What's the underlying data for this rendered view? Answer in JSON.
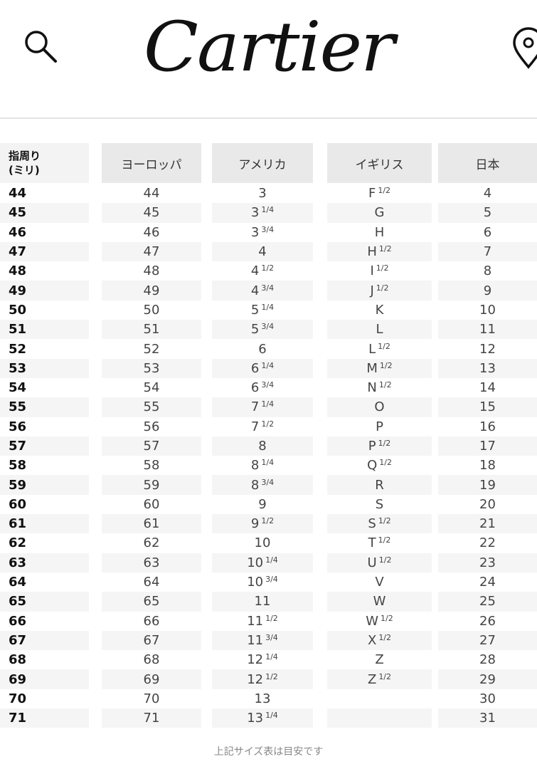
{
  "header": {
    "logo": "Cartier",
    "search_icon": "search-icon",
    "location_icon": "map-pin-icon"
  },
  "table": {
    "headers": [
      "指周り\n(ミリ)",
      "ヨーロッパ",
      "アメリカ",
      "イギリス",
      "日本"
    ],
    "rows": [
      {
        "mm": "44",
        "eu": "44",
        "us": "3",
        "us_f": "",
        "uk": "F",
        "uk_f": "1/2",
        "jp": "4"
      },
      {
        "mm": "45",
        "eu": "45",
        "us": "3",
        "us_f": "1/4",
        "uk": "G",
        "uk_f": "",
        "jp": "5"
      },
      {
        "mm": "46",
        "eu": "46",
        "us": "3",
        "us_f": "3/4",
        "uk": "H",
        "uk_f": "",
        "jp": "6"
      },
      {
        "mm": "47",
        "eu": "47",
        "us": "4",
        "us_f": "",
        "uk": "H",
        "uk_f": "1/2",
        "jp": "7"
      },
      {
        "mm": "48",
        "eu": "48",
        "us": "4",
        "us_f": "1/2",
        "uk": "I",
        "uk_f": "1/2",
        "jp": "8"
      },
      {
        "mm": "49",
        "eu": "49",
        "us": "4",
        "us_f": "3/4",
        "uk": "J",
        "uk_f": "1/2",
        "jp": "9"
      },
      {
        "mm": "50",
        "eu": "50",
        "us": "5",
        "us_f": "1/4",
        "uk": "K",
        "uk_f": "",
        "jp": "10"
      },
      {
        "mm": "51",
        "eu": "51",
        "us": "5",
        "us_f": "3/4",
        "uk": "L",
        "uk_f": "",
        "jp": "11"
      },
      {
        "mm": "52",
        "eu": "52",
        "us": "6",
        "us_f": "",
        "uk": "L",
        "uk_f": "1/2",
        "jp": "12"
      },
      {
        "mm": "53",
        "eu": "53",
        "us": "6",
        "us_f": "1/4",
        "uk": "M",
        "uk_f": "1/2",
        "jp": "13"
      },
      {
        "mm": "54",
        "eu": "54",
        "us": "6",
        "us_f": "3/4",
        "uk": "N",
        "uk_f": "1/2",
        "jp": "14"
      },
      {
        "mm": "55",
        "eu": "55",
        "us": "7",
        "us_f": "1/4",
        "uk": "O",
        "uk_f": "",
        "jp": "15"
      },
      {
        "mm": "56",
        "eu": "56",
        "us": "7",
        "us_f": "1/2",
        "uk": "P",
        "uk_f": "",
        "jp": "16"
      },
      {
        "mm": "57",
        "eu": "57",
        "us": "8",
        "us_f": "",
        "uk": "P",
        "uk_f": "1/2",
        "jp": "17"
      },
      {
        "mm": "58",
        "eu": "58",
        "us": "8",
        "us_f": "1/4",
        "uk": "Q",
        "uk_f": "1/2",
        "jp": "18"
      },
      {
        "mm": "59",
        "eu": "59",
        "us": "8",
        "us_f": "3/4",
        "uk": "R",
        "uk_f": "",
        "jp": "19"
      },
      {
        "mm": "60",
        "eu": "60",
        "us": "9",
        "us_f": "",
        "uk": "S",
        "uk_f": "",
        "jp": "20"
      },
      {
        "mm": "61",
        "eu": "61",
        "us": "9",
        "us_f": "1/2",
        "uk": "S",
        "uk_f": "1/2",
        "jp": "21"
      },
      {
        "mm": "62",
        "eu": "62",
        "us": "10",
        "us_f": "",
        "uk": "T",
        "uk_f": "1/2",
        "jp": "22"
      },
      {
        "mm": "63",
        "eu": "63",
        "us": "10",
        "us_f": "1/4",
        "uk": "U",
        "uk_f": "1/2",
        "jp": "23"
      },
      {
        "mm": "64",
        "eu": "64",
        "us": "10",
        "us_f": "3/4",
        "uk": "V",
        "uk_f": "",
        "jp": "24"
      },
      {
        "mm": "65",
        "eu": "65",
        "us": "11",
        "us_f": "",
        "uk": "W",
        "uk_f": "",
        "jp": "25"
      },
      {
        "mm": "66",
        "eu": "66",
        "us": "11",
        "us_f": "1/2",
        "uk": "W",
        "uk_f": "1/2",
        "jp": "26"
      },
      {
        "mm": "67",
        "eu": "67",
        "us": "11",
        "us_f": "3/4",
        "uk": "X",
        "uk_f": "1/2",
        "jp": "27"
      },
      {
        "mm": "68",
        "eu": "68",
        "us": "12",
        "us_f": "1/4",
        "uk": "Z",
        "uk_f": "",
        "jp": "28"
      },
      {
        "mm": "69",
        "eu": "69",
        "us": "12",
        "us_f": "1/2",
        "uk": "Z",
        "uk_f": "1/2",
        "jp": "29"
      },
      {
        "mm": "70",
        "eu": "70",
        "us": "13",
        "us_f": "",
        "uk": "",
        "uk_f": "",
        "jp": "30"
      },
      {
        "mm": "71",
        "eu": "71",
        "us": "13",
        "us_f": "1/4",
        "uk": "",
        "uk_f": "",
        "jp": "31"
      }
    ]
  },
  "footer": {
    "note": "上記サイズ表は目安です"
  }
}
